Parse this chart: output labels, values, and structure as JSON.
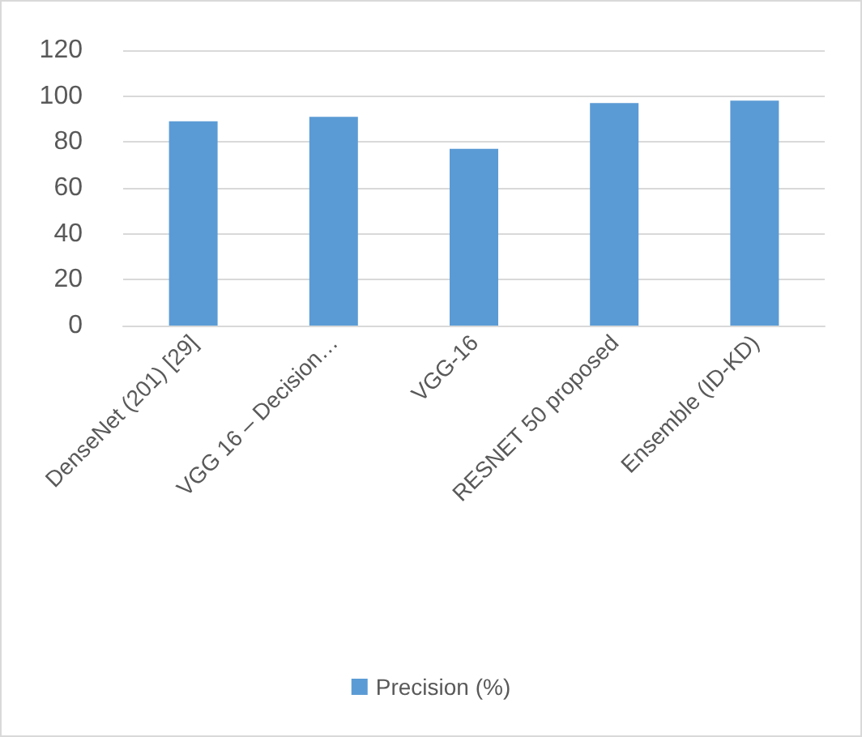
{
  "chart_data": {
    "type": "bar",
    "categories": [
      "DenseNet (201) [29]",
      "VGG 16 – Decision…",
      "VGG-16",
      "RESNET 50 proposed",
      "Ensemble (ID-KD)"
    ],
    "series": [
      {
        "name": "Precision (%)",
        "color": "#5b9bd5",
        "values": [
          89,
          91,
          77,
          97,
          98
        ]
      }
    ],
    "ylim": [
      0,
      120
    ],
    "yticks": [
      0,
      20,
      40,
      60,
      80,
      100,
      120
    ],
    "grid": "y",
    "legend": "bottom"
  }
}
